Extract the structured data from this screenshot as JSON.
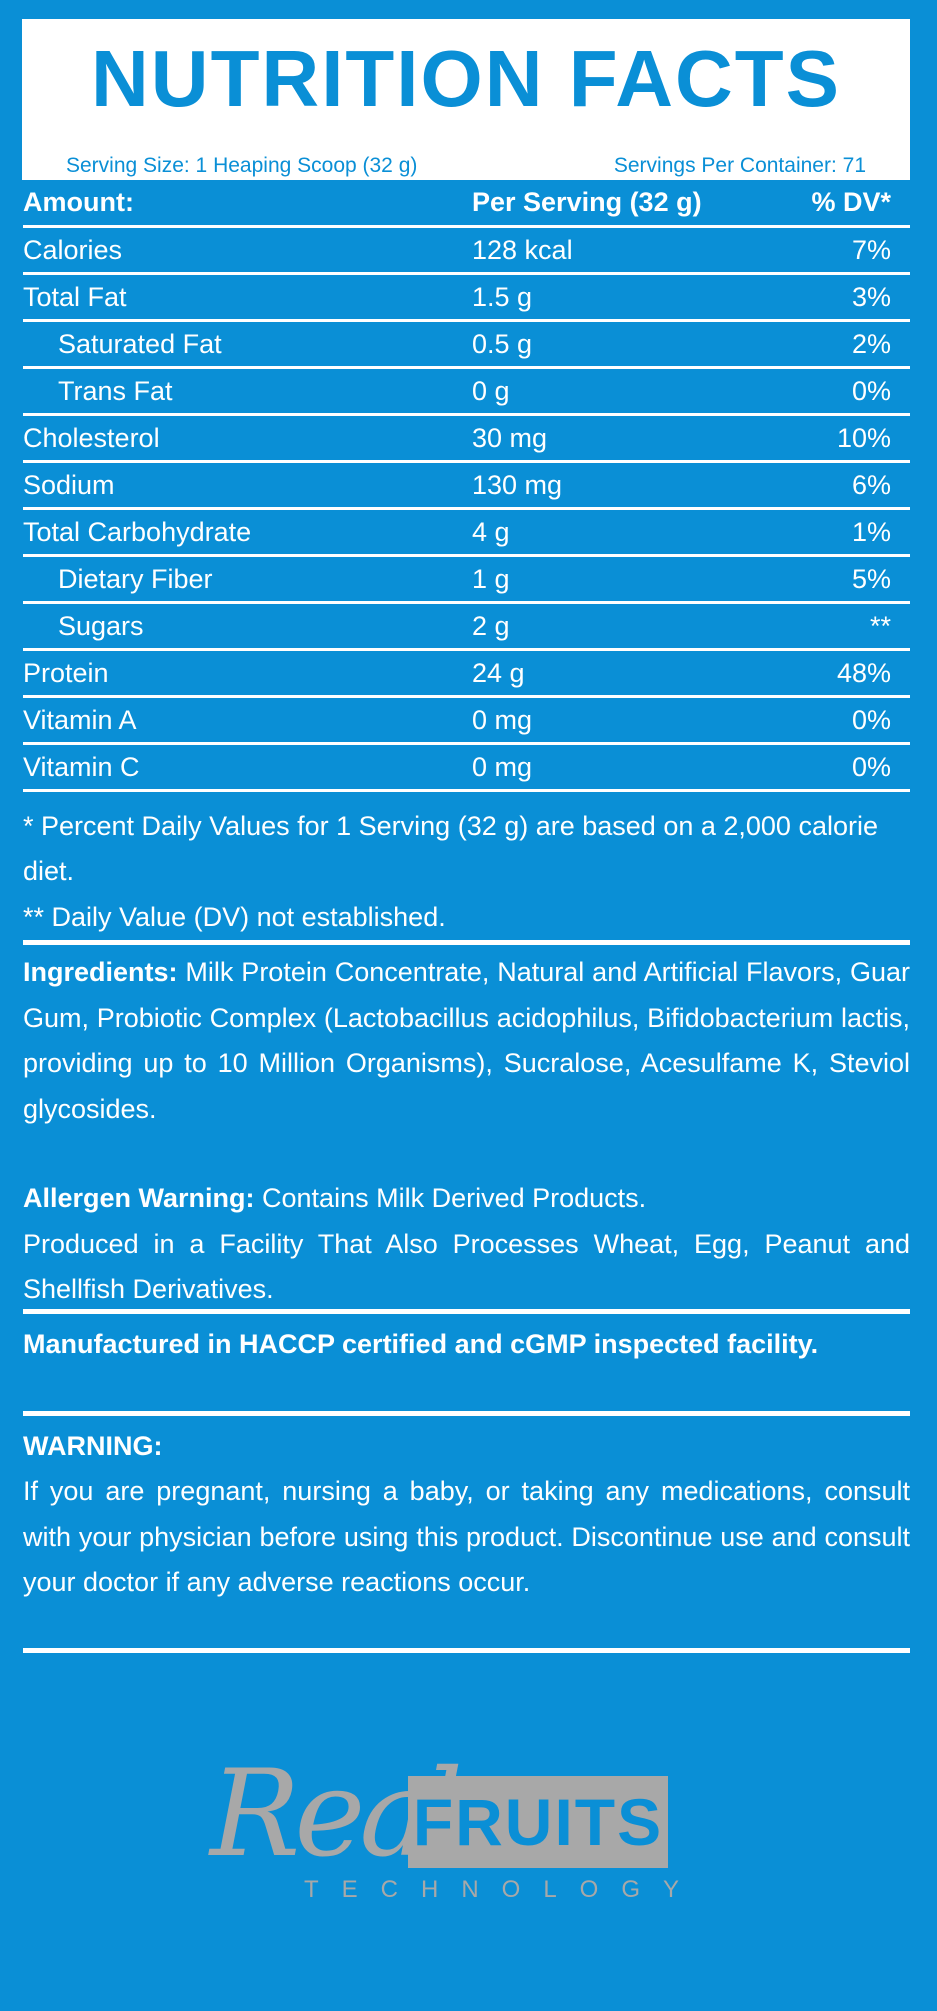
{
  "header": {
    "title": "NUTRITION FACTS",
    "serving_size": "Serving Size: 1 Heaping Scoop (32 g)",
    "servings_per_container": "Servings Per Container: 71"
  },
  "table": {
    "columns": [
      "Amount:",
      "Per Serving (32 g)",
      "% DV*"
    ],
    "rows": [
      {
        "name": "Calories",
        "amount": "128 kcal",
        "dv": "7%"
      },
      {
        "name": "Total Fat",
        "amount": "1.5 g",
        "dv": "3%"
      },
      {
        "name": "Saturated Fat",
        "amount": "0.5 g",
        "dv": "2%"
      },
      {
        "name": "Trans Fat",
        "amount": "0 g",
        "dv": "0%"
      },
      {
        "name": "Cholesterol",
        "amount": "30 mg",
        "dv": "10%"
      },
      {
        "name": "Sodium",
        "amount": "130 mg",
        "dv": "6%"
      },
      {
        "name": "Total Carbohydrate",
        "amount": "4 g",
        "dv": "1%"
      },
      {
        "name": "Dietary Fiber",
        "amount": "1 g",
        "dv": "5%"
      },
      {
        "name": "Sugars",
        "amount": "2 g",
        "dv": "**"
      },
      {
        "name": "Protein",
        "amount": "24 g",
        "dv": "48%"
      },
      {
        "name": "Vitamin A",
        "amount": "0 mg",
        "dv": "0%"
      },
      {
        "name": "Vitamin C",
        "amount": "0 mg",
        "dv": "0%"
      }
    ]
  },
  "footnotes": {
    "line1": "* Percent Daily Values for 1 Serving (32 g) are based on a 2,000 calorie diet.",
    "line2": "** Daily Value (DV) not established."
  },
  "ingredients": {
    "label": "Ingredients:",
    "text": " Milk Protein Concentrate, Natural and Artificial Flavors, Guar Gum, Probiotic Complex (Lactobacillus acidophilus, Bifidobacterium lactis, providing up to 10 Million Organisms), Sucralose, Acesulfame K, Steviol glycosides."
  },
  "allergen": {
    "label": "Allergen Warning:",
    "text": " Contains Milk Derived Products.",
    "text2": "Produced in a Facility That Also Processes Wheat, Egg, Peanut and Shellfish Derivatives."
  },
  "manufactured": "Manufactured in HACCP certified and cGMP inspected facility.",
  "warning": {
    "label": "WARNING:",
    "text": "If you are pregnant, nursing a baby, or taking any medications, consult with your physician before using this product. Discontinue use and consult your doctor if any adverse reactions occur."
  },
  "logo": {
    "script": "Real",
    "box": "FRUITS",
    "sub": "TECHNOLOGY"
  },
  "colors": {
    "background": "#0a8fd6",
    "logo_grey": "#a8a8a8"
  }
}
